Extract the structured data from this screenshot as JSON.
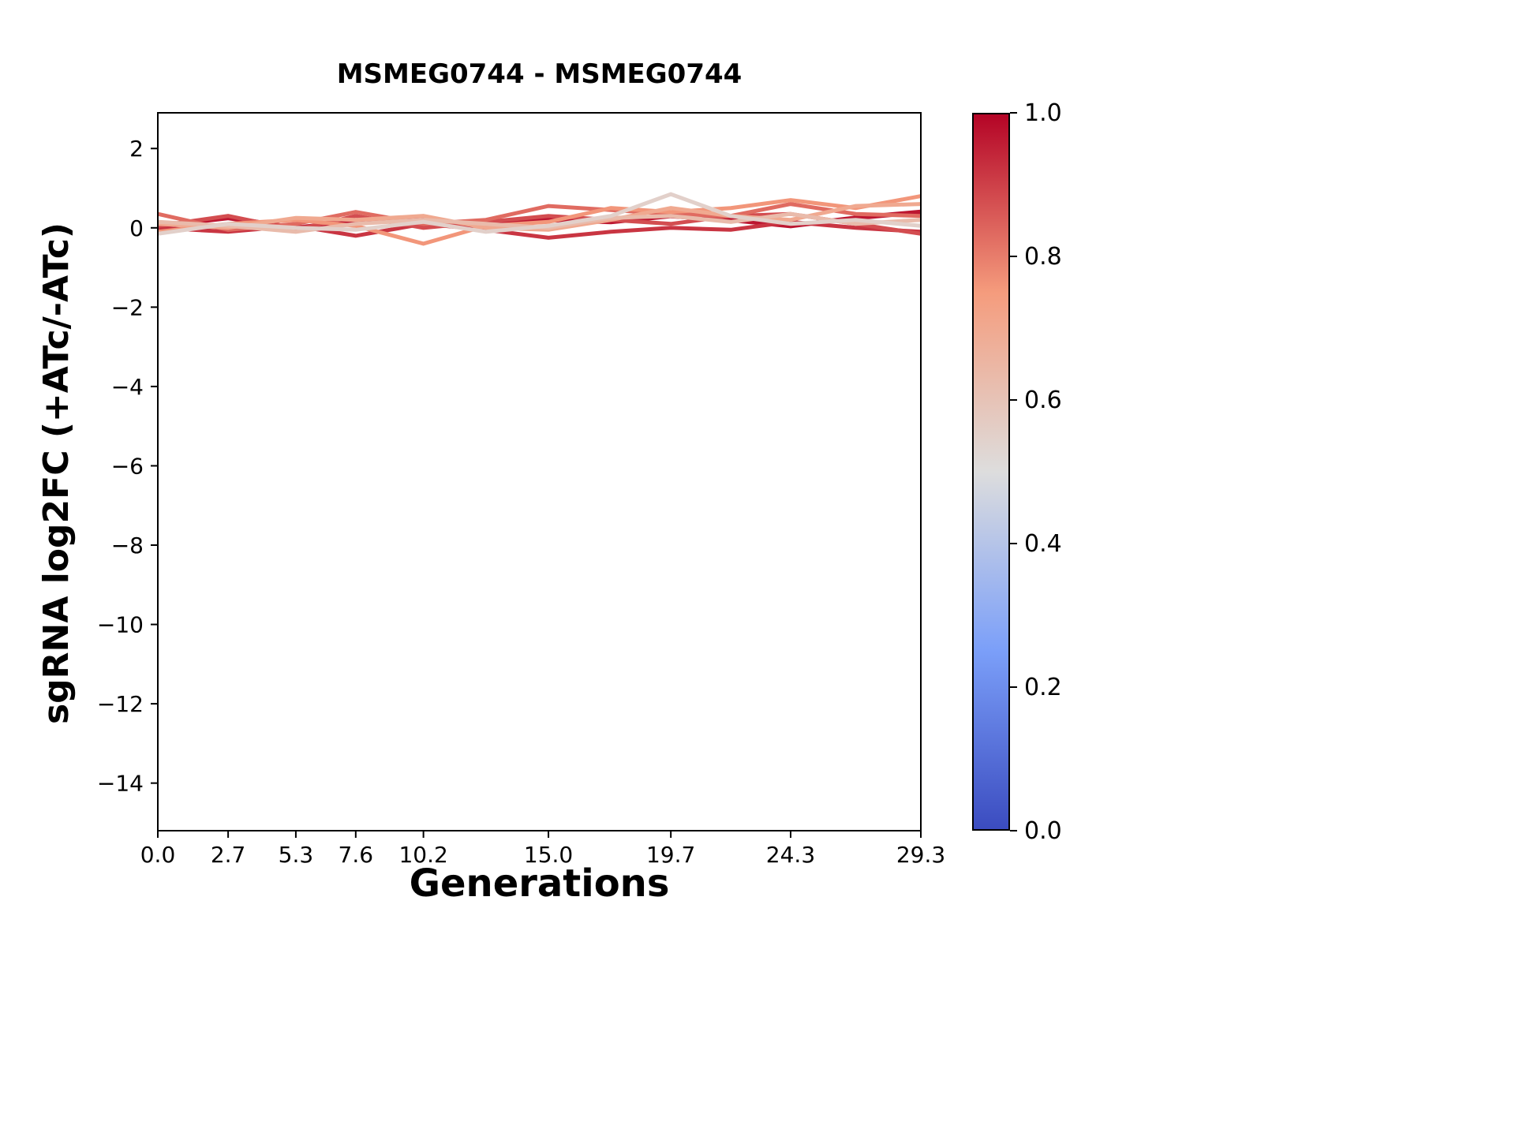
{
  "title": "MSMEG0744 - MSMEG0744",
  "xlabel": "Generations",
  "ylabel": "sgRNA log2FC (+ATc/-ATc)",
  "chart_data": {
    "type": "line",
    "title": "MSMEG0744 - MSMEG0744",
    "xlabel": "Generations",
    "ylabel": "sgRNA log2FC (+ATc/-ATc)",
    "xlim": [
      0,
      29.3
    ],
    "ylim": [
      -15.2,
      2.9
    ],
    "grid": false,
    "x": [
      0,
      2.7,
      5.3,
      7.6,
      10.2,
      12.6,
      15.0,
      17.4,
      19.7,
      22.0,
      24.3,
      26.8,
      29.3
    ],
    "xticks": [
      0.0,
      2.7,
      5.3,
      7.6,
      10.2,
      15.0,
      19.7,
      24.3,
      29.3
    ],
    "xtick_labels": [
      "0.0",
      "2.7",
      "5.3",
      "7.6",
      "10.2",
      "15.0",
      "19.7",
      "24.3",
      "29.3"
    ],
    "yticks": [
      2,
      0,
      -2,
      -4,
      -6,
      -8,
      -10,
      -12,
      -14
    ],
    "ytick_labels": [
      "2",
      "0",
      "−2",
      "−4",
      "−6",
      "−8",
      "−10",
      "−12",
      "−14"
    ],
    "series": [
      {
        "name": "line-1",
        "color_value": 0.97,
        "width": 6,
        "values": [
          0.05,
          0.25,
          0.0,
          0.15,
          0.2,
          0.05,
          0.2,
          0.15,
          0.3,
          0.2,
          0.05,
          0.25,
          0.4
        ]
      },
      {
        "name": "line-2",
        "color_value": 0.92,
        "width": 5,
        "values": [
          0.0,
          -0.1,
          0.05,
          -0.2,
          0.1,
          -0.05,
          -0.25,
          -0.1,
          0.0,
          -0.05,
          0.15,
          0.0,
          -0.1
        ]
      },
      {
        "name": "line-3",
        "color_value": 0.88,
        "width": 5,
        "values": [
          0.05,
          0.3,
          -0.05,
          0.3,
          0.0,
          0.15,
          0.3,
          0.2,
          0.1,
          0.3,
          0.35,
          0.1,
          -0.15
        ]
      },
      {
        "name": "line-4",
        "color_value": 0.83,
        "width": 5,
        "values": [
          0.35,
          -0.05,
          0.1,
          0.4,
          0.1,
          0.2,
          0.55,
          0.45,
          0.35,
          0.3,
          0.6,
          0.35,
          0.3
        ]
      },
      {
        "name": "line-5",
        "color_value": 0.76,
        "width": 5,
        "values": [
          -0.1,
          0.1,
          0.2,
          0.05,
          -0.4,
          0.05,
          0.15,
          0.5,
          0.4,
          0.5,
          0.7,
          0.5,
          0.8
        ]
      },
      {
        "name": "line-6",
        "color_value": 0.7,
        "width": 5,
        "values": [
          0.1,
          0.0,
          0.25,
          0.2,
          0.3,
          0.0,
          -0.05,
          0.2,
          0.5,
          0.3,
          0.2,
          0.55,
          0.6
        ]
      },
      {
        "name": "line-7",
        "color_value": 0.63,
        "width": 5,
        "values": [
          0.15,
          0.05,
          -0.1,
          0.1,
          0.2,
          0.1,
          0.0,
          0.25,
          0.3,
          0.15,
          0.35,
          0.1,
          0.2
        ]
      },
      {
        "name": "line-8",
        "color_value": 0.55,
        "width": 5,
        "values": [
          -0.15,
          0.1,
          0.0,
          -0.05,
          0.15,
          -0.1,
          0.05,
          0.3,
          0.85,
          0.3,
          0.1,
          0.2,
          0.05
        ]
      }
    ],
    "colormap": [
      {
        "t": 0.0,
        "hex": "#3b4cc0"
      },
      {
        "t": 0.25,
        "hex": "#7b9ff9"
      },
      {
        "t": 0.5,
        "hex": "#dddddd"
      },
      {
        "t": 0.75,
        "hex": "#f59c7d"
      },
      {
        "t": 1.0,
        "hex": "#b40426"
      }
    ],
    "colorbar": {
      "min": 0.0,
      "max": 1.0,
      "ticks": [
        1.0,
        0.8,
        0.6,
        0.4,
        0.2,
        0.0
      ],
      "tick_labels": [
        "1.0",
        "0.8",
        "0.6",
        "0.4",
        "0.2",
        "0.0"
      ],
      "position": "right"
    },
    "legend": "none",
    "axis_color": "#000000"
  }
}
